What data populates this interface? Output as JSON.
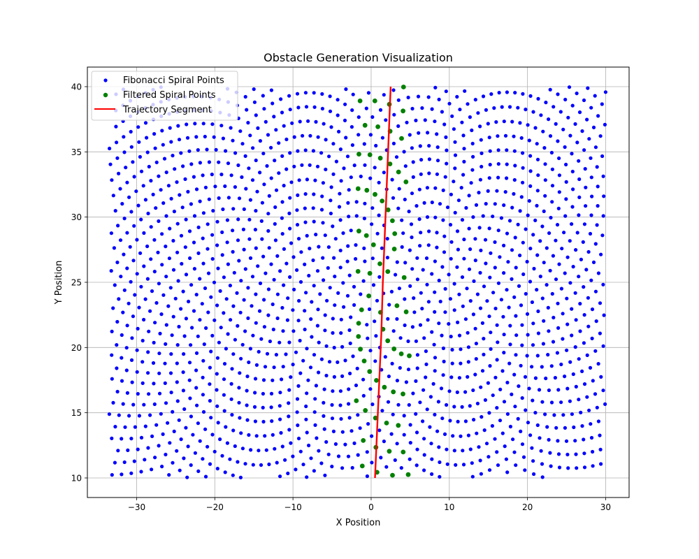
{
  "chart_data": {
    "type": "scatter",
    "title": "Obstacle Generation Visualization",
    "xlabel": "X Position",
    "ylabel": "Y Position",
    "xlim": [
      -36.3,
      33.0
    ],
    "ylim": [
      8.5,
      41.5
    ],
    "xticks": [
      -30,
      -20,
      -10,
      0,
      10,
      20,
      30
    ],
    "yticks": [
      10,
      15,
      20,
      25,
      30,
      35,
      40
    ],
    "grid": true,
    "legend_position": "upper-left",
    "spiral": {
      "center": [
        1.5,
        25.0
      ],
      "count": 6000,
      "scale": 0.6,
      "x_range": [
        -33.5,
        30.0
      ],
      "y_range": [
        10.0,
        40.0
      ]
    },
    "filter": {
      "x_range": [
        -2.0,
        5.0
      ]
    },
    "series": [
      {
        "name": "Fibonacci Spiral Points",
        "kind": "scatter",
        "color": "#0000ff",
        "source": "spiral"
      },
      {
        "name": "Filtered Spiral Points",
        "kind": "scatter",
        "color": "#008000",
        "source": "filtered"
      },
      {
        "name": "Trajectory Segment",
        "kind": "line",
        "color": "#ff0000",
        "x": [
          0.5,
          1.3,
          1.5,
          1.7,
          2.5
        ],
        "y": [
          10,
          21,
          25,
          28,
          40
        ]
      }
    ]
  }
}
